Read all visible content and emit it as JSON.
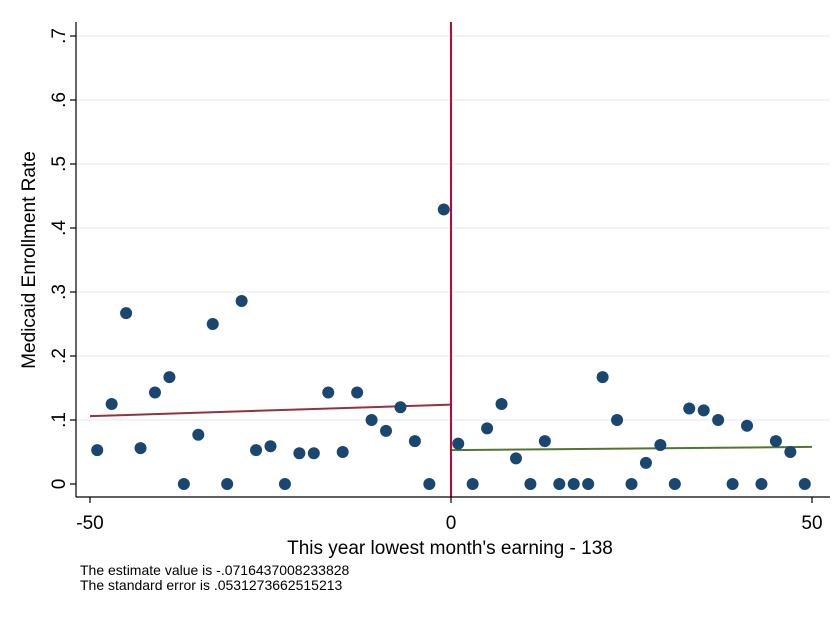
{
  "chart_data": {
    "type": "scatter",
    "xlabel": "This year lowest month's earning - 138",
    "ylabel": "Medicaid Enrollment Rate",
    "xlim": [
      -50,
      50
    ],
    "ylim": [
      0,
      0.7
    ],
    "x_ticks": [
      -50,
      0,
      50
    ],
    "x_tick_labels": [
      "-50",
      "0",
      "50"
    ],
    "y_ticks": [
      0,
      0.1,
      0.2,
      0.3,
      0.4,
      0.5,
      0.6,
      0.7
    ],
    "y_tick_labels": [
      "0",
      ".1",
      ".2",
      ".3",
      ".4",
      ".5",
      ".6",
      ".7"
    ],
    "grid": true,
    "cutoff_x": 0,
    "colors": {
      "points": "#1a476f",
      "cutoff": "#c10534",
      "fit_left": "#90353b",
      "fit_right": "#55752f",
      "grid": "#eaf2f3"
    },
    "series": [
      {
        "x": [
          -49,
          -47,
          -45,
          -43,
          -41,
          -39,
          -37,
          -35,
          -33,
          -31,
          -29,
          -27,
          -25,
          -23,
          -21,
          -19,
          -17,
          -15,
          -13,
          -11,
          -9,
          -7,
          -5,
          -3,
          -1,
          1,
          3,
          5,
          7,
          9,
          11,
          13,
          15,
          17,
          19,
          21,
          23,
          25,
          27,
          29,
          31,
          33,
          35,
          37,
          39,
          41,
          43,
          45,
          47,
          49
        ],
        "y": [
          0.053,
          0.125,
          0.267,
          0.056,
          0.143,
          0.167,
          0.0,
          0.077,
          0.25,
          0.0,
          0.286,
          0.053,
          0.059,
          0.0,
          0.048,
          0.048,
          0.143,
          0.05,
          0.143,
          0.1,
          0.083,
          0.12,
          0.067,
          0.0,
          0.429,
          0.063,
          0.0,
          0.087,
          0.125,
          0.04,
          0.0,
          0.067,
          0.0,
          0.0,
          0.0,
          0.167,
          0.1,
          0.0,
          0.033,
          0.061,
          0.0,
          0.118,
          0.115,
          0.1,
          0.0,
          0.091,
          0.0,
          0.067,
          0.05,
          0.0
        ]
      }
    ],
    "fit_lines": [
      {
        "side": "left",
        "x": [
          -50,
          0
        ],
        "y": [
          0.106,
          0.124
        ]
      },
      {
        "side": "right",
        "x": [
          0,
          50
        ],
        "y": [
          0.053,
          0.058
        ]
      }
    ]
  },
  "notes": {
    "estimate": "The estimate value is -.0716437008233828",
    "std_error": "The standard error is .0531273662515213"
  }
}
